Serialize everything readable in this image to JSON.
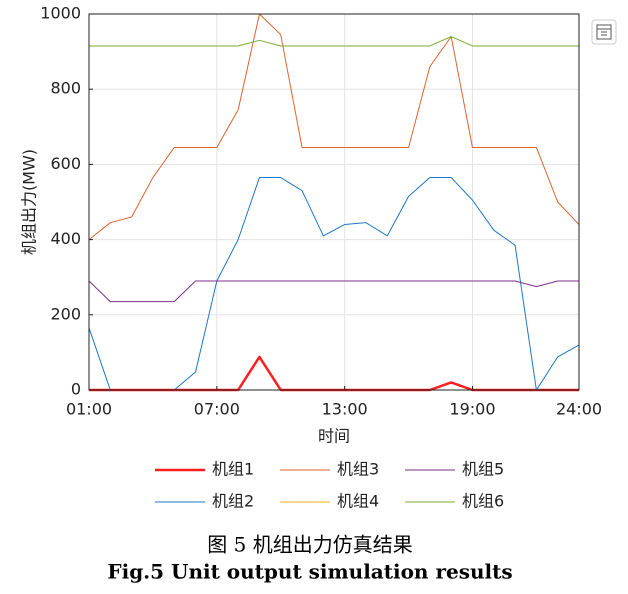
{
  "chart_data": {
    "type": "line",
    "y_label": "机组出力(MW)",
    "x_label": "时间",
    "caption": "图 5  机组出力仿真结果",
    "caption_en": "Fig.5 Unit output simulation results",
    "x": [
      1,
      2,
      3,
      4,
      5,
      6,
      7,
      8,
      9,
      10,
      11,
      12,
      13,
      14,
      15,
      16,
      17,
      18,
      19,
      20,
      21,
      22,
      23,
      24
    ],
    "xlim": [
      1,
      24
    ],
    "xticks": [
      {
        "value": 1,
        "label": "01:00"
      },
      {
        "value": 7,
        "label": "07:00"
      },
      {
        "value": 13,
        "label": "13:00"
      },
      {
        "value": 19,
        "label": "19:00"
      },
      {
        "value": 24,
        "label": "24:00"
      }
    ],
    "ylim": [
      0,
      1000
    ],
    "yticks": [
      0,
      200,
      400,
      600,
      800,
      1000
    ],
    "grid": true,
    "series": [
      {
        "name": "机组1",
        "color": "#ff1f1f",
        "width": 2.5,
        "values": [
          0,
          0,
          0,
          0,
          0,
          0,
          0,
          0,
          88,
          0,
          0,
          0,
          0,
          0,
          0,
          0,
          0,
          20,
          0,
          0,
          0,
          0,
          0,
          0
        ]
      },
      {
        "name": "机组2",
        "color": "#1f77c4",
        "width": 1,
        "values": [
          165,
          0,
          0,
          0,
          0,
          48,
          290,
          400,
          565,
          565,
          530,
          410,
          440,
          445,
          410,
          515,
          565,
          565,
          505,
          425,
          385,
          0,
          88,
          120
        ]
      },
      {
        "name": "机组3",
        "color": "#e0622f",
        "width": 1,
        "values": [
          400,
          445,
          460,
          565,
          645,
          645,
          645,
          745,
          1000,
          945,
          645,
          645,
          645,
          645,
          645,
          645,
          860,
          940,
          645,
          645,
          645,
          645,
          500,
          440
        ]
      },
      {
        "name": "机组4",
        "color": "#edb120",
        "width": 1,
        "values": [
          0,
          0,
          0,
          0,
          0,
          0,
          0,
          0,
          0,
          0,
          0,
          0,
          0,
          0,
          0,
          0,
          0,
          0,
          0,
          0,
          0,
          0,
          0,
          0
        ]
      },
      {
        "name": "机组5",
        "color": "#7e2f8e",
        "width": 1,
        "values": [
          290,
          235,
          235,
          235,
          235,
          290,
          290,
          290,
          290,
          290,
          290,
          290,
          290,
          290,
          290,
          290,
          290,
          290,
          290,
          290,
          290,
          275,
          290,
          290
        ]
      },
      {
        "name": "机组6",
        "color": "#77ac30",
        "width": 1,
        "values": [
          915,
          915,
          915,
          915,
          915,
          915,
          915,
          915,
          930,
          915,
          915,
          915,
          915,
          915,
          915,
          915,
          915,
          940,
          915,
          915,
          915,
          915,
          915,
          915
        ]
      }
    ]
  }
}
